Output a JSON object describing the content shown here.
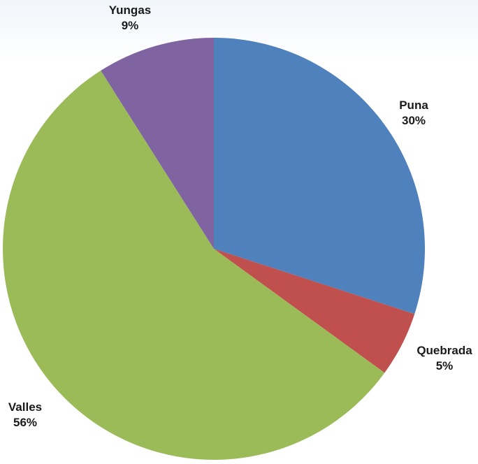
{
  "chart_data": {
    "type": "pie",
    "title": "",
    "slices": [
      {
        "label": "Puna",
        "value": 30,
        "value_label": "30%",
        "color": "#4f81bd"
      },
      {
        "label": "Quebrada",
        "value": 5,
        "value_label": "5%",
        "color": "#c0504d"
      },
      {
        "label": "Valles",
        "value": 56,
        "value_label": "56%",
        "color": "#9bbb59"
      },
      {
        "label": "Yungas",
        "value": 9,
        "value_label": "9%",
        "color": "#8064a2"
      }
    ],
    "start_angle": "top (12 o'clock)",
    "direction": "clockwise",
    "legend": "none (category and percentage labels outside slices)"
  }
}
